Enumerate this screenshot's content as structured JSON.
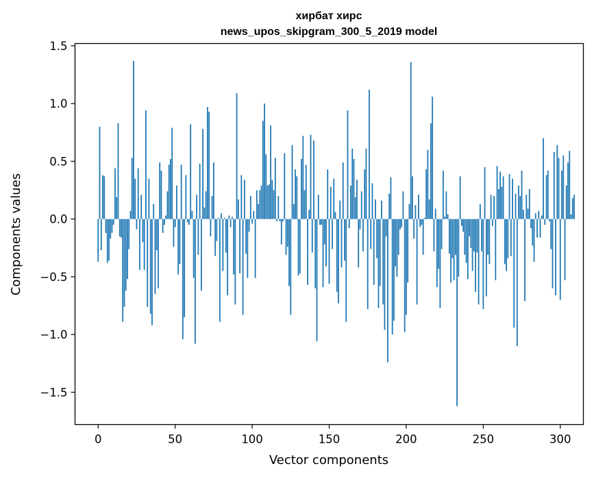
{
  "chart_data": {
    "type": "bar",
    "title_line1": "хирбат хирс",
    "title_line2": "news_upos_skipgram_300_5_2019 model",
    "xlabel": "Vector components",
    "ylabel": "Components values",
    "xlim": [
      -15,
      315
    ],
    "ylim": [
      -1.78,
      1.52
    ],
    "xticks": [
      0,
      50,
      100,
      150,
      200,
      250,
      300
    ],
    "xtick_labels": [
      "0",
      "50",
      "100",
      "150",
      "200",
      "250",
      "300"
    ],
    "yticks": [
      -1.5,
      -1.0,
      -0.5,
      0.0,
      0.5,
      1.0,
      1.5
    ],
    "ytick_labels": [
      "−1.5",
      "−1.0",
      "−0.5",
      "0.0",
      "0.5",
      "1.0",
      "1.5"
    ],
    "bar_color": "#1f77b4",
    "values": [
      -0.37,
      0.8,
      -0.27,
      0.38,
      0.37,
      -0.12,
      -0.38,
      -0.36,
      -0.17,
      -0.12,
      -0.05,
      0.44,
      0.19,
      0.83,
      -0.15,
      -0.16,
      -0.89,
      -0.76,
      -0.62,
      -0.52,
      -0.26,
      0.07,
      0.53,
      1.37,
      0.35,
      -0.09,
      0.44,
      -0.44,
      0.21,
      -0.2,
      -0.44,
      0.94,
      -0.76,
      0.35,
      -0.82,
      -0.92,
      0.13,
      -0.65,
      -0.27,
      -0.6,
      0.49,
      0.42,
      -0.12,
      -0.05,
      0.03,
      0.24,
      0.47,
      0.52,
      0.79,
      -0.24,
      -0.07,
      0.29,
      -0.48,
      -0.39,
      0.47,
      -1.04,
      -0.85,
      0.38,
      -0.03,
      -0.05,
      0.82,
      0.07,
      -0.51,
      -1.08,
      0.21,
      -0.31,
      0.48,
      -0.62,
      0.78,
      0.1,
      0.24,
      0.97,
      0.93,
      -0.15,
      0.2,
      0.49,
      -0.32,
      -0.19,
      0.01,
      -0.89,
      0.05,
      -0.45,
      0.01,
      -0.29,
      -0.66,
      0.03,
      -0.07,
      0.02,
      -0.48,
      -0.74,
      1.09,
      0.17,
      -0.47,
      0.38,
      -0.83,
      0.34,
      -0.3,
      -0.51,
      -0.11,
      0.2,
      -0.04,
      0.07,
      -0.51,
      0.25,
      0.13,
      0.25,
      0.29,
      0.85,
      1.0,
      0.56,
      0.29,
      0.3,
      0.81,
      0.34,
      0.25,
      0.53,
      -0.02,
      0.2,
      -0.02,
      -0.22,
      -0.02,
      0.57,
      -0.31,
      -0.24,
      -0.58,
      -0.83,
      0.64,
      0.13,
      0.43,
      0.37,
      -0.49,
      -0.47,
      0.52,
      0.72,
      0.25,
      0.47,
      -0.57,
      0.08,
      0.73,
      -0.29,
      0.68,
      -0.6,
      -1.06,
      0.21,
      -0.05,
      -0.05,
      -0.59,
      -0.22,
      -0.41,
      0.43,
      -0.56,
      0.28,
      -0.26,
      0.35,
      0.06,
      -0.63,
      -0.73,
      0.16,
      -0.42,
      0.49,
      -0.36,
      -0.89,
      0.94,
      -0.08,
      0.29,
      0.61,
      0.52,
      0.19,
      0.34,
      -0.42,
      -0.09,
      0.24,
      -0.28,
      0.43,
      0.61,
      -0.78,
      1.12,
      -0.26,
      0.31,
      -0.57,
      0.17,
      -0.34,
      -0.77,
      -0.58,
      0.16,
      -0.74,
      -0.96,
      -0.15,
      -1.24,
      0.22,
      0.36,
      -1.0,
      -0.88,
      -0.41,
      -0.5,
      -0.31,
      -0.09,
      -0.07,
      0.24,
      -0.98,
      -0.83,
      -0.55,
      0.13,
      1.36,
      0.37,
      -0.17,
      0.12,
      -0.74,
      0.21,
      -0.07,
      -0.05,
      -0.31,
      0.01,
      0.43,
      0.6,
      0.17,
      0.83,
      1.06,
      -0.28,
      0.09,
      -0.59,
      -0.43,
      -0.77,
      -0.26,
      0.42,
      0.02,
      0.24,
      0.04,
      -0.3,
      -0.55,
      -0.34,
      -0.53,
      -0.31,
      -1.62,
      -0.5,
      0.37,
      -0.06,
      -0.11,
      -0.31,
      -0.38,
      -0.52,
      -0.15,
      -0.25,
      -0.45,
      -0.28,
      -0.63,
      -0.29,
      -0.74,
      0.13,
      -0.28,
      -0.78,
      0.45,
      -0.67,
      -0.31,
      -0.39,
      0.21,
      -0.06,
      0.2,
      -0.53,
      0.46,
      0.26,
      0.41,
      0.28,
      0.37,
      -0.39,
      -0.45,
      -0.34,
      0.39,
      -0.32,
      0.35,
      -0.94,
      0.22,
      -1.1,
      0.29,
      0.2,
      0.42,
      0.08,
      -0.71,
      0.21,
      0.09,
      0.26,
      -0.08,
      -0.23,
      -0.37,
      0.05,
      -0.16,
      0.07,
      -0.16,
      0.03,
      0.7,
      -0.05,
      0.38,
      0.42,
      -0.02,
      -0.26,
      -0.6,
      0.58,
      -0.66,
      0.64,
      0.53,
      -0.7,
      0.42,
      0.55,
      -0.53,
      0.29,
      0.49,
      0.59,
      0.04,
      0.18,
      0.21
    ]
  }
}
